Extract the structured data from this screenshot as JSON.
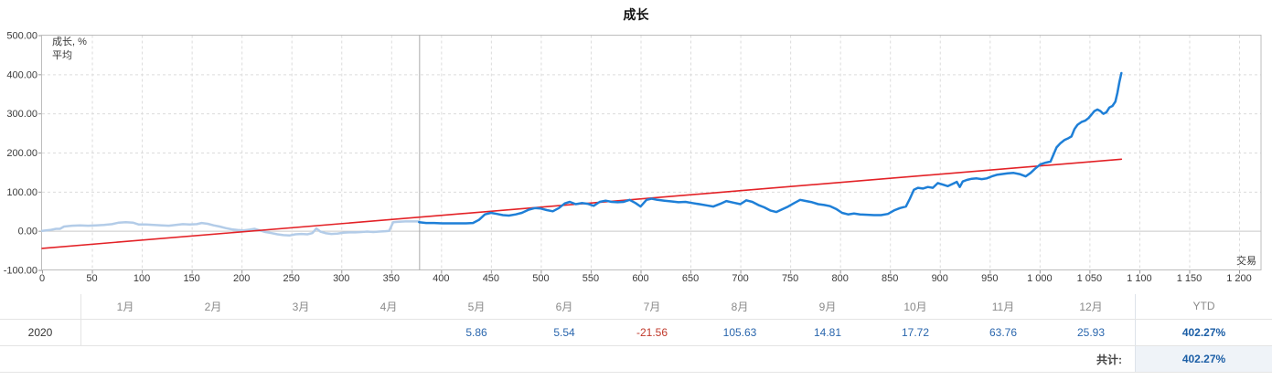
{
  "title": "成长",
  "legend": {
    "growth": "成长, %",
    "average": "平均"
  },
  "colors": {
    "growth_line": "#1e7fd7",
    "history_line": "#b3cce8",
    "average_line": "#e32227",
    "grid": "#dcdcdc",
    "zero_line": "#c9c9c9",
    "plot_border": "#bdbdbd",
    "divider": "#a9a9a9",
    "axis_text": "#3c3c3c",
    "ytd_value": "#1b5ea6",
    "value_text": "#2a66ad",
    "negative_value": "#c0392b"
  },
  "chart_data": {
    "type": "line",
    "title": "成长",
    "xlabel": "交易",
    "ylabel": "成长, %",
    "xlim": [
      0,
      1200
    ],
    "ylim": [
      -100,
      500
    ],
    "grid": true,
    "legend_position": "top-left",
    "divider_x": 378,
    "x_ticks": [
      {
        "v": 0,
        "label": "0"
      },
      {
        "v": 50,
        "label": "50"
      },
      {
        "v": 100,
        "label": "100"
      },
      {
        "v": 150,
        "label": "150"
      },
      {
        "v": 200,
        "label": "200"
      },
      {
        "v": 250,
        "label": "250"
      },
      {
        "v": 300,
        "label": "300"
      },
      {
        "v": 350,
        "label": "350"
      },
      {
        "v": 400,
        "label": "400"
      },
      {
        "v": 450,
        "label": "450"
      },
      {
        "v": 500,
        "label": "500"
      },
      {
        "v": 550,
        "label": "550"
      },
      {
        "v": 600,
        "label": "600"
      },
      {
        "v": 650,
        "label": "650"
      },
      {
        "v": 700,
        "label": "700"
      },
      {
        "v": 750,
        "label": "750"
      },
      {
        "v": 800,
        "label": "800"
      },
      {
        "v": 850,
        "label": "850"
      },
      {
        "v": 900,
        "label": "900"
      },
      {
        "v": 950,
        "label": "950"
      },
      {
        "v": 1000,
        "label": "1 000"
      },
      {
        "v": 1050,
        "label": "1 050"
      },
      {
        "v": 1100,
        "label": "1 100"
      },
      {
        "v": 1150,
        "label": "1 150"
      },
      {
        "v": 1200,
        "label": "1 200"
      }
    ],
    "y_ticks": [
      {
        "v": 500,
        "label": "500.00"
      },
      {
        "v": 400,
        "label": "400.00"
      },
      {
        "v": 300,
        "label": "300.00"
      },
      {
        "v": 200,
        "label": "200.00"
      },
      {
        "v": 100,
        "label": "100.00"
      },
      {
        "v": 0,
        "label": "0.00"
      },
      {
        "v": -100,
        "label": "-100.00"
      }
    ],
    "series": [
      {
        "name": "成长, %",
        "variant": "faded-history",
        "color": "#b3cce8",
        "width": 2.5,
        "points": [
          [
            0,
            0
          ],
          [
            8,
            2
          ],
          [
            14,
            5
          ],
          [
            18,
            5
          ],
          [
            22,
            11
          ],
          [
            30,
            13
          ],
          [
            38,
            14
          ],
          [
            46,
            13
          ],
          [
            54,
            14
          ],
          [
            62,
            15
          ],
          [
            70,
            17
          ],
          [
            77,
            21
          ],
          [
            84,
            22
          ],
          [
            91,
            21
          ],
          [
            97,
            16
          ],
          [
            104,
            16
          ],
          [
            112,
            15
          ],
          [
            120,
            14
          ],
          [
            127,
            13
          ],
          [
            134,
            15
          ],
          [
            141,
            17
          ],
          [
            148,
            16
          ],
          [
            155,
            17
          ],
          [
            160,
            20
          ],
          [
            166,
            18
          ],
          [
            172,
            14
          ],
          [
            178,
            11
          ],
          [
            184,
            7
          ],
          [
            190,
            4
          ],
          [
            196,
            2
          ],
          [
            202,
            1
          ],
          [
            208,
            3
          ],
          [
            213,
            5
          ],
          [
            218,
            1
          ],
          [
            224,
            -3
          ],
          [
            230,
            -6
          ],
          [
            236,
            -9
          ],
          [
            242,
            -11
          ],
          [
            248,
            -12
          ],
          [
            254,
            -9
          ],
          [
            260,
            -8
          ],
          [
            266,
            -9
          ],
          [
            271,
            -6
          ],
          [
            275,
            6
          ],
          [
            279,
            -2
          ],
          [
            284,
            -6
          ],
          [
            290,
            -8
          ],
          [
            296,
            -7
          ],
          [
            302,
            -5
          ],
          [
            308,
            -4
          ],
          [
            314,
            -4
          ],
          [
            320,
            -3
          ],
          [
            326,
            -2
          ],
          [
            332,
            -3
          ],
          [
            338,
            -2
          ],
          [
            344,
            -1
          ],
          [
            348,
            0
          ],
          [
            352,
            22
          ],
          [
            358,
            23
          ],
          [
            364,
            24
          ],
          [
            370,
            24
          ],
          [
            378,
            24
          ]
        ]
      },
      {
        "name": "平均",
        "variant": "trend",
        "color": "#e32227",
        "width": 1.6,
        "points": [
          [
            0,
            -45
          ],
          [
            1082,
            183
          ]
        ]
      },
      {
        "name": "成长, %",
        "variant": "live",
        "color": "#1e7fd7",
        "width": 2.5,
        "points": [
          [
            378,
            22
          ],
          [
            385,
            20
          ],
          [
            393,
            20
          ],
          [
            401,
            19
          ],
          [
            409,
            19
          ],
          [
            417,
            19
          ],
          [
            425,
            19
          ],
          [
            432,
            20
          ],
          [
            438,
            28
          ],
          [
            444,
            42
          ],
          [
            450,
            46
          ],
          [
            456,
            43
          ],
          [
            462,
            40
          ],
          [
            468,
            39
          ],
          [
            475,
            42
          ],
          [
            481,
            46
          ],
          [
            488,
            54
          ],
          [
            494,
            58
          ],
          [
            500,
            57
          ],
          [
            506,
            53
          ],
          [
            512,
            50
          ],
          [
            518,
            58
          ],
          [
            524,
            70
          ],
          [
            529,
            74
          ],
          [
            535,
            68
          ],
          [
            541,
            71
          ],
          [
            547,
            69
          ],
          [
            553,
            64
          ],
          [
            559,
            74
          ],
          [
            565,
            77
          ],
          [
            571,
            74
          ],
          [
            577,
            73
          ],
          [
            583,
            74
          ],
          [
            589,
            79
          ],
          [
            595,
            71
          ],
          [
            600,
            62
          ],
          [
            606,
            79
          ],
          [
            611,
            82
          ],
          [
            617,
            79
          ],
          [
            624,
            77
          ],
          [
            631,
            75
          ],
          [
            638,
            73
          ],
          [
            645,
            74
          ],
          [
            652,
            71
          ],
          [
            659,
            68
          ],
          [
            666,
            65
          ],
          [
            673,
            62
          ],
          [
            680,
            69
          ],
          [
            686,
            76
          ],
          [
            693,
            72
          ],
          [
            700,
            68
          ],
          [
            706,
            78
          ],
          [
            712,
            74
          ],
          [
            718,
            66
          ],
          [
            724,
            60
          ],
          [
            730,
            52
          ],
          [
            736,
            48
          ],
          [
            742,
            55
          ],
          [
            748,
            62
          ],
          [
            754,
            71
          ],
          [
            760,
            79
          ],
          [
            766,
            76
          ],
          [
            772,
            73
          ],
          [
            778,
            68
          ],
          [
            784,
            66
          ],
          [
            790,
            63
          ],
          [
            796,
            56
          ],
          [
            802,
            46
          ],
          [
            808,
            42
          ],
          [
            814,
            44
          ],
          [
            820,
            42
          ],
          [
            827,
            41
          ],
          [
            834,
            40
          ],
          [
            841,
            40
          ],
          [
            848,
            43
          ],
          [
            854,
            52
          ],
          [
            860,
            58
          ],
          [
            866,
            62
          ],
          [
            870,
            82
          ],
          [
            874,
            105
          ],
          [
            878,
            110
          ],
          [
            883,
            108
          ],
          [
            888,
            112
          ],
          [
            893,
            110
          ],
          [
            898,
            122
          ],
          [
            903,
            118
          ],
          [
            908,
            114
          ],
          [
            913,
            120
          ],
          [
            917,
            125
          ],
          [
            920,
            112
          ],
          [
            923,
            126
          ],
          [
            927,
            130
          ],
          [
            932,
            133
          ],
          [
            937,
            134
          ],
          [
            942,
            132
          ],
          [
            947,
            134
          ],
          [
            952,
            139
          ],
          [
            957,
            143
          ],
          [
            962,
            145
          ],
          [
            968,
            147
          ],
          [
            974,
            148
          ],
          [
            980,
            145
          ],
          [
            986,
            139
          ],
          [
            991,
            148
          ],
          [
            996,
            160
          ],
          [
            1001,
            170
          ],
          [
            1006,
            174
          ],
          [
            1011,
            177
          ],
          [
            1014,
            195
          ],
          [
            1017,
            213
          ],
          [
            1021,
            224
          ],
          [
            1025,
            232
          ],
          [
            1029,
            237
          ],
          [
            1032,
            241
          ],
          [
            1035,
            260
          ],
          [
            1038,
            271
          ],
          [
            1042,
            278
          ],
          [
            1046,
            282
          ],
          [
            1049,
            288
          ],
          [
            1052,
            297
          ],
          [
            1055,
            306
          ],
          [
            1058,
            310
          ],
          [
            1061,
            306
          ],
          [
            1064,
            299
          ],
          [
            1067,
            303
          ],
          [
            1070,
            315
          ],
          [
            1073,
            319
          ],
          [
            1076,
            330
          ],
          [
            1078,
            352
          ],
          [
            1080,
            380
          ],
          [
            1082,
            403
          ]
        ]
      }
    ]
  },
  "table": {
    "months": [
      "1月",
      "2月",
      "3月",
      "4月",
      "5月",
      "6月",
      "7月",
      "8月",
      "9月",
      "10月",
      "11月",
      "12月"
    ],
    "ytd_header": "YTD",
    "rows": [
      {
        "year": "2020",
        "values": [
          "",
          "",
          "",
          "",
          "5.86",
          "5.54",
          "-21.56",
          "105.63",
          "14.81",
          "17.72",
          "63.76",
          "25.93"
        ],
        "ytd": "402.27%"
      }
    ],
    "total_label": "共计:",
    "total_value": "402.27%"
  }
}
